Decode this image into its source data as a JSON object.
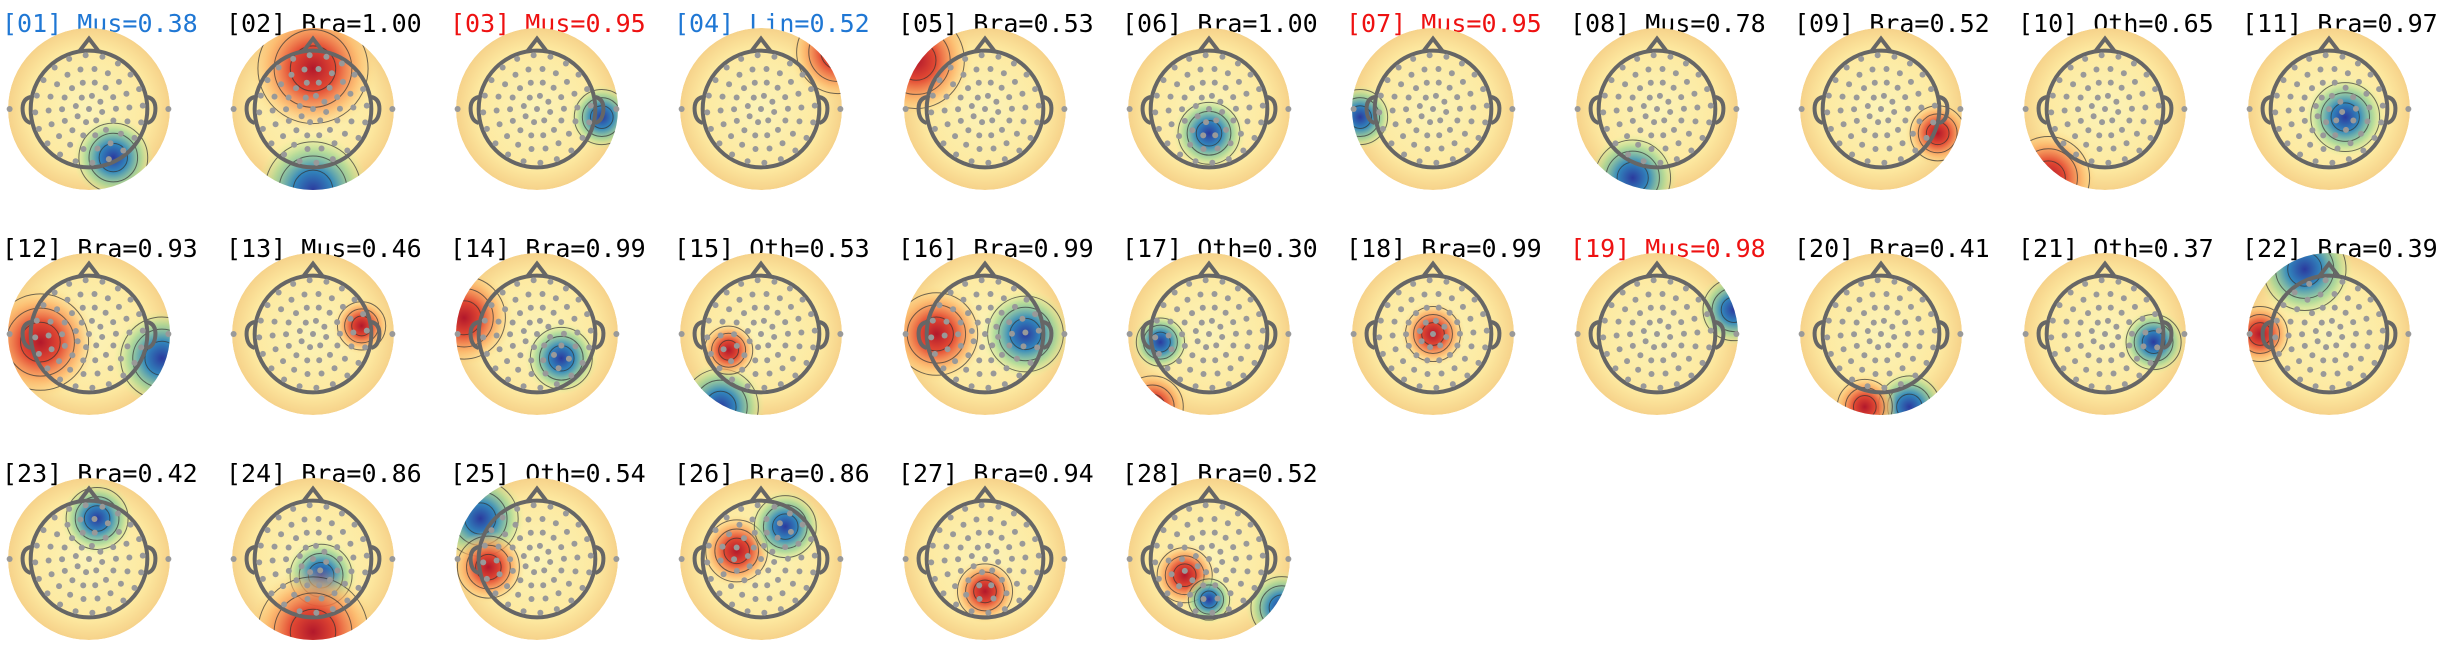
{
  "components": [
    {
      "label": "[01] Mus=0.38",
      "color": "#1f77d4"
    },
    {
      "label": "[02] Bra=1.00",
      "color": "#000000"
    },
    {
      "label": "[03] Mus=0.95",
      "color": "#ee1111"
    },
    {
      "label": "[04] Lin=0.52",
      "color": "#1f77d4"
    },
    {
      "label": "[05] Bra=0.53",
      "color": "#000000"
    },
    {
      "label": "[06] Bra=1.00",
      "color": "#000000"
    },
    {
      "label": "[07] Mus=0.95",
      "color": "#ee1111"
    },
    {
      "label": "[08] Mus=0.78",
      "color": "#000000"
    },
    {
      "label": "[09] Bra=0.52",
      "color": "#000000"
    },
    {
      "label": "[10] Oth=0.65",
      "color": "#000000"
    },
    {
      "label": "[11] Bra=0.97",
      "color": "#000000"
    },
    {
      "label": "[12] Bra=0.93",
      "color": "#000000"
    },
    {
      "label": "[13] Mus=0.46",
      "color": "#000000"
    },
    {
      "label": "[14] Bra=0.99",
      "color": "#000000"
    },
    {
      "label": "[15] Oth=0.53",
      "color": "#000000"
    },
    {
      "label": "[16] Bra=0.99",
      "color": "#000000"
    },
    {
      "label": "[17] Oth=0.30",
      "color": "#000000"
    },
    {
      "label": "[18] Bra=0.99",
      "color": "#000000"
    },
    {
      "label": "[19] Mus=0.98",
      "color": "#ee1111"
    },
    {
      "label": "[20] Bra=0.41",
      "color": "#000000"
    },
    {
      "label": "[21] Oth=0.37",
      "color": "#000000"
    },
    {
      "label": "[22] Bra=0.39",
      "color": "#000000"
    },
    {
      "label": "[23] Bra=0.42",
      "color": "#000000"
    },
    {
      "label": "[24] Bra=0.86",
      "color": "#000000"
    },
    {
      "label": "[25] Oth=0.54",
      "color": "#000000"
    },
    {
      "label": "[26] Bra=0.86",
      "color": "#000000"
    },
    {
      "label": "[27] Bra=0.94",
      "color": "#000000"
    },
    {
      "label": "[28] Bra=0.52",
      "color": "#000000"
    }
  ]
}
